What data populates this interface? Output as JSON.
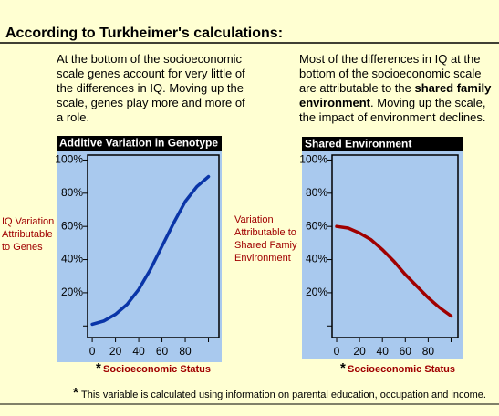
{
  "heading": "According to Turkheimer's calculations:",
  "descriptions": [
    {
      "parts": [
        {
          "text": "At the bottom of the socioeconomic scale genes account for very little of the differences in IQ. Moving up the scale, genes play more and more of a role.",
          "bold": false
        }
      ]
    },
    {
      "parts": [
        {
          "text": "Most of the differences in IQ at the bottom of the socioeconomic scale are attributable to the ",
          "bold": false
        },
        {
          "text": "shared family environment",
          "bold": true
        },
        {
          "text": ". Moving up the scale, the impact of environment declines.",
          "bold": false
        }
      ]
    }
  ],
  "footnote": {
    "marker": "*",
    "text": "This variable is calculated using information on parental education, occupation and income."
  },
  "chart_data": [
    {
      "type": "line",
      "title": "Additive Variation in Genotype",
      "y_label": [
        "IQ Variation",
        "Attributable",
        "to Genes"
      ],
      "x_label_marker": "*",
      "x_label": "Socioeconomic Status",
      "x": [
        0,
        10,
        20,
        30,
        40,
        50,
        60,
        70,
        80,
        90,
        100
      ],
      "values": [
        1,
        3,
        7,
        13,
        22,
        34,
        48,
        62,
        75,
        84,
        90
      ],
      "color": "#0a35a8",
      "xlim": [
        -4,
        109
      ],
      "xticks": [
        0,
        20,
        40,
        60,
        80,
        {
          "value": 100,
          "label": null
        }
      ],
      "ylim": [
        -7,
        103
      ],
      "yticks": [
        {
          "value": 0,
          "label": null
        },
        {
          "value": 20,
          "label": "20%"
        },
        {
          "value": 40,
          "label": "40%"
        },
        {
          "value": 60,
          "label": "60%"
        },
        {
          "value": 80,
          "label": "80%"
        },
        {
          "value": 100,
          "label": "100%"
        }
      ]
    },
    {
      "type": "line",
      "title": "Shared Environment",
      "y_label": [
        "Variation",
        "Attributable to",
        "Shared Famiy",
        "Environment"
      ],
      "x_label_marker": "*",
      "x_label": "Socioeconomic Status",
      "x": [
        0,
        10,
        20,
        30,
        40,
        50,
        60,
        70,
        80,
        90,
        100
      ],
      "values": [
        60,
        59,
        56,
        52,
        46,
        39,
        31,
        24,
        17,
        11,
        6
      ],
      "color": "#a00000",
      "xlim": [
        -4,
        106
      ],
      "xticks": [
        0,
        20,
        40,
        60,
        80,
        {
          "value": 100,
          "label": null
        }
      ],
      "ylim": [
        -7,
        103
      ],
      "yticks": [
        {
          "value": 0,
          "label": null
        },
        {
          "value": 20,
          "label": "20%"
        },
        {
          "value": 40,
          "label": "40%"
        },
        {
          "value": 60,
          "label": "60%"
        },
        {
          "value": 80,
          "label": "80%"
        },
        {
          "value": 100,
          "label": "100%"
        }
      ]
    }
  ]
}
